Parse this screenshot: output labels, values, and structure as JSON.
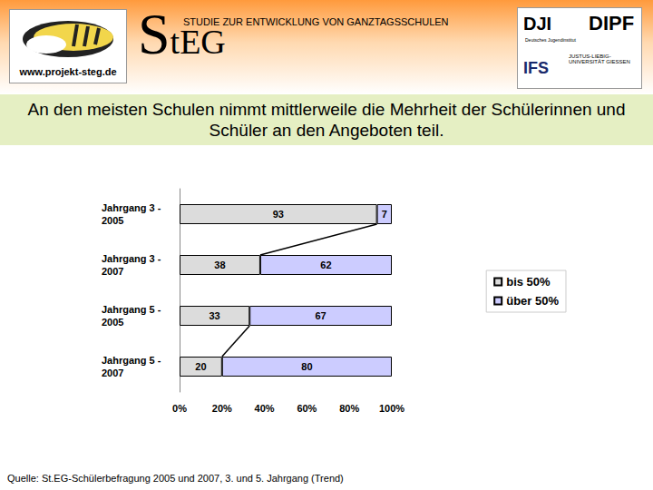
{
  "header": {
    "logo": "StEG",
    "subtitle": "STUDIE ZUR ENTWICKLUNG VON GANZTAGSSCHULEN",
    "url": "www.projekt-steg.de",
    "partners": [
      "DJI",
      "Deutsches Jugendinstitut",
      "DIPF",
      "IFS",
      "JUSTUS-LIEBIG-UNIVERSITÄT GIESSEN"
    ]
  },
  "chart_data": {
    "type": "bar",
    "title": "An den meisten Schulen nimmt mittlerweile die Mehrheit der Schülerinnen und Schüler an den Angeboten teil.",
    "orientation": "horizontal",
    "stacked": true,
    "data_labels": true,
    "grid": false,
    "legend": "right",
    "categories": [
      "Jahrgang 3 - 2005",
      "Jahrgang 3 - 2007",
      "Jahrgang 5 - 2005",
      "Jahrgang 5 - 2007"
    ],
    "series": [
      {
        "name": "bis 50%",
        "color": "#dcdcdc",
        "values": [
          93,
          38,
          33,
          20
        ]
      },
      {
        "name": "über 50%",
        "color": "#ccccff",
        "values": [
          7,
          62,
          67,
          80
        ]
      }
    ],
    "xlim": [
      0,
      100
    ],
    "xticks": [
      {
        "value": 0,
        "label": "0%"
      },
      {
        "value": 20,
        "label": "20%"
      },
      {
        "value": 40,
        "label": "40%"
      },
      {
        "value": 60,
        "label": "60%"
      },
      {
        "value": 80,
        "label": "80%"
      },
      {
        "value": 100,
        "label": "100%"
      }
    ]
  },
  "source": "Quelle: St.EG-Schülerbefragung 2005 und 2007, 3. und 5. Jahrgang (Trend)"
}
